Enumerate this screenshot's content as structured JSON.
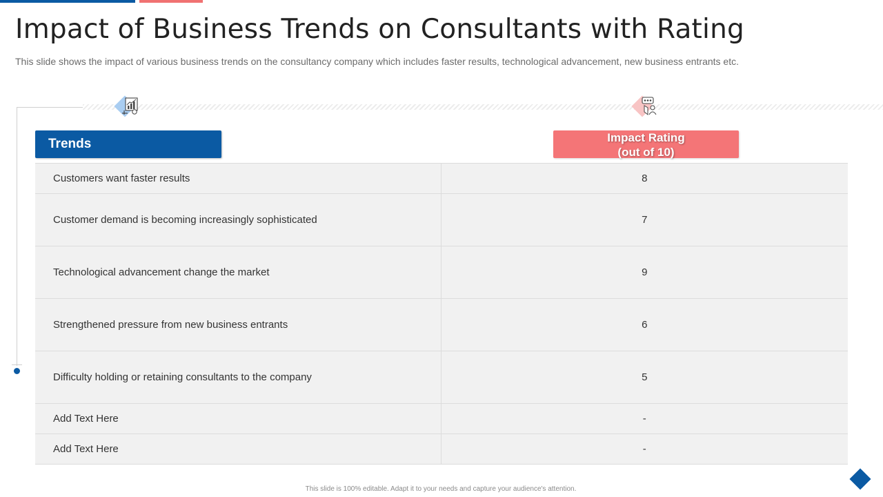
{
  "slide": {
    "title": "Impact of Business Trends on Consultants with Rating",
    "subtitle": "This slide shows the impact of various business trends on the consultancy company which includes faster results, technological advancement, new business entrants etc.",
    "footer": "This slide is 100% editable. Adapt it to your needs and capture your audience's attention."
  },
  "table": {
    "header_trends": "Trends",
    "header_rating_line1": "Impact Rating",
    "header_rating_line2": "(out of 10)",
    "rows": [
      {
        "trend": "Customers want faster results",
        "rating": "8"
      },
      {
        "trend": "Customer demand is becoming increasingly sophisticated",
        "rating": "7"
      },
      {
        "trend": "Technological advancement change the market",
        "rating": "9"
      },
      {
        "trend": "Strengthened pressure from new business entrants",
        "rating": "6"
      },
      {
        "trend": "Difficulty holding or retaining consultants to the company",
        "rating": "5"
      },
      {
        "trend": "Add Text Here",
        "rating": "-"
      },
      {
        "trend": "Add Text Here",
        "rating": "-"
      }
    ]
  },
  "icons": {
    "trends_icon": "chart-presentation-icon",
    "rating_icon": "customer-feedback-icon"
  },
  "colors": {
    "primary_blue": "#0b5aa3",
    "accent_pink": "#f47577",
    "row_background": "#f1f1f1"
  }
}
